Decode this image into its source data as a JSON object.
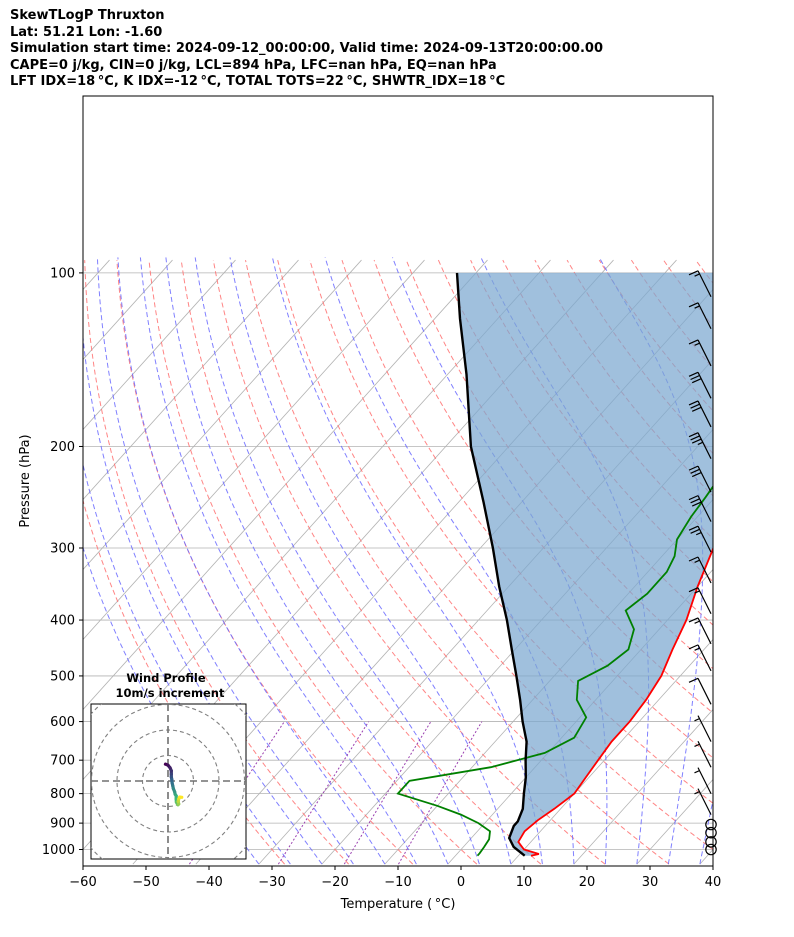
{
  "header": {
    "line1": "SkewTLogP Thruxton",
    "line2": "Lat: 51.21   Lon: -1.60",
    "line3": "Simulation start time: 2024-09-12_00:00:00, Valid time: 2024-09-13T20:00:00.00",
    "line4": "CAPE=0 j/kg, CIN=0 j/kg, LCL=894 hPa, LFC=nan hPa, EQ=nan hPa",
    "line5": "LFT IDX=18$^\\circ$C, K IDX=-12$^\\circ$C, TOTAL TOTS=22$^\\circ$C, SHWTR_IDX=18$^\\circ$C",
    "line5_display": "LFT IDX=18 °C, K IDX=-12 °C, TOTAL TOTS=22 °C, SHWTR_IDX=18 °C"
  },
  "chart_data": {
    "type": "skewt",
    "xlabel": "Temperature ($^\\circ$C)",
    "xlabel_display": "Temperature ( °C)",
    "ylabel": "Pressure (hPa)",
    "xlim": [
      -60,
      40
    ],
    "ylim": [
      1050,
      100
    ],
    "x_ticks": [
      -60,
      -50,
      -40,
      -30,
      -20,
      -10,
      0,
      10,
      20,
      30,
      40
    ],
    "y_ticks": [
      100,
      200,
      300,
      400,
      500,
      600,
      700,
      800,
      900,
      1000
    ],
    "y_scale": "log",
    "grid": true,
    "temperature": {
      "color": "#ff0000",
      "points": [
        [
          1025,
          12
        ],
        [
          1018,
          13
        ],
        [
          1000,
          10
        ],
        [
          970,
          8
        ],
        [
          930,
          7.5
        ],
        [
          890,
          8
        ],
        [
          850,
          9
        ],
        [
          800,
          10
        ],
        [
          750,
          9.5
        ],
        [
          700,
          9
        ],
        [
          650,
          8.5
        ],
        [
          600,
          8.5
        ],
        [
          550,
          8
        ],
        [
          500,
          7
        ],
        [
          450,
          5
        ],
        [
          400,
          3
        ],
        [
          350,
          0
        ],
        [
          300,
          -3
        ],
        [
          270,
          -5
        ],
        [
          245,
          -8
        ],
        [
          230,
          -10
        ],
        [
          215,
          -11.5
        ],
        [
          205,
          -11
        ],
        [
          190,
          -8.5
        ],
        [
          178,
          -7
        ],
        [
          168,
          -4
        ],
        [
          158,
          -1
        ],
        [
          148,
          1.5
        ],
        [
          140,
          3
        ],
        [
          132,
          5
        ],
        [
          124,
          6
        ],
        [
          115,
          6.5
        ],
        [
          108,
          8
        ],
        [
          100,
          10.5
        ]
      ]
    },
    "dewpoint": {
      "color": "#008000",
      "points": [
        [
          1025,
          3.5
        ],
        [
          1015,
          3.5
        ],
        [
          990,
          3.3
        ],
        [
          960,
          3
        ],
        [
          930,
          2
        ],
        [
          900,
          -1
        ],
        [
          870,
          -5
        ],
        [
          840,
          -10
        ],
        [
          800,
          -18
        ],
        [
          760,
          -18
        ],
        [
          720,
          -7
        ],
        [
          680,
          -0.5
        ],
        [
          640,
          2
        ],
        [
          590,
          1
        ],
        [
          550,
          -3
        ],
        [
          510,
          -5.5
        ],
        [
          480,
          -3
        ],
        [
          450,
          -2
        ],
        [
          415,
          -4
        ],
        [
          385,
          -8
        ],
        [
          360,
          -7
        ],
        [
          330,
          -7
        ],
        [
          310,
          -8
        ],
        [
          290,
          -10
        ],
        [
          265,
          -11
        ],
        [
          245,
          -11.5
        ],
        [
          230,
          -12
        ],
        [
          215,
          -14
        ],
        [
          205,
          -12.5
        ],
        [
          190,
          -11
        ],
        [
          175,
          -9.5
        ],
        [
          160,
          -11
        ],
        [
          148,
          -14
        ],
        [
          140,
          -19
        ],
        [
          128,
          -15
        ],
        [
          115,
          -11
        ],
        [
          100,
          -6
        ]
      ]
    },
    "parcel_profile": {
      "color": "#000000",
      "points": [
        [
          1025,
          11
        ],
        [
          990,
          8
        ],
        [
          955,
          6
        ],
        [
          910,
          5
        ],
        [
          894,
          5
        ],
        [
          850,
          4
        ],
        [
          800,
          2
        ],
        [
          750,
          0
        ],
        [
          700,
          -2.5
        ],
        [
          650,
          -5
        ],
        [
          600,
          -8.5
        ],
        [
          550,
          -12
        ],
        [
          500,
          -16
        ],
        [
          450,
          -20.5
        ],
        [
          400,
          -25.5
        ],
        [
          350,
          -31.5
        ],
        [
          300,
          -38
        ],
        [
          250,
          -46
        ],
        [
          200,
          -56
        ],
        [
          150,
          -67
        ],
        [
          120,
          -76
        ],
        [
          100,
          -83
        ]
      ]
    },
    "cape_shading": {
      "color": "#7ba8d0",
      "note": ""
    },
    "background_lines": {
      "isotherms_color": "#b3b3b3",
      "dry_adiabats_color": "#ff7070",
      "moist_adiabats_color": "#6a6aff",
      "mixing_ratio_color": "#9a40b0"
    },
    "wind_barbs": [
      {
        "p": 1000,
        "speed_kt": 0
      },
      {
        "p": 970,
        "speed_kt": 0
      },
      {
        "p": 935,
        "speed_kt": 0
      },
      {
        "p": 905,
        "speed_kt": 0
      },
      {
        "p": 870,
        "speed_kt": 5
      },
      {
        "p": 800,
        "speed_kt": 5
      },
      {
        "p": 720,
        "speed_kt": 5
      },
      {
        "p": 650,
        "speed_kt": 5
      },
      {
        "p": 560,
        "speed_kt": 10
      },
      {
        "p": 490,
        "speed_kt": 15
      },
      {
        "p": 440,
        "speed_kt": 15
      },
      {
        "p": 390,
        "speed_kt": 15
      },
      {
        "p": 345,
        "speed_kt": 15
      },
      {
        "p": 305,
        "speed_kt": 25
      },
      {
        "p": 270,
        "speed_kt": 30
      },
      {
        "p": 240,
        "speed_kt": 30
      },
      {
        "p": 210,
        "speed_kt": 35
      },
      {
        "p": 185,
        "speed_kt": 30
      },
      {
        "p": 165,
        "speed_kt": 30
      },
      {
        "p": 145,
        "speed_kt": 15
      },
      {
        "p": 125,
        "speed_kt": 15
      },
      {
        "p": 110,
        "speed_kt": 15
      }
    ],
    "hodograph": {
      "title": "Wind Profile",
      "subtitle": "10m/s increment",
      "rings": 3,
      "color_scale": [
        "#440154",
        "#31688e",
        "#35b779",
        "#fde725"
      ],
      "points_ms": [
        [
          -1,
          6.6
        ],
        [
          0,
          6.2
        ],
        [
          0.8,
          5.2
        ],
        [
          1.3,
          4.0
        ],
        [
          1.3,
          2.7
        ],
        [
          1.3,
          1.6
        ],
        [
          1.5,
          0.6
        ],
        [
          1.6,
          -0.7
        ],
        [
          1.9,
          -2.0
        ],
        [
          2.1,
          -3.0
        ],
        [
          2.6,
          -4.2
        ],
        [
          2.8,
          -5.2
        ],
        [
          3.2,
          -5.8
        ],
        [
          3.2,
          -7.0
        ],
        [
          3.3,
          -8.3
        ],
        [
          3.9,
          -9.3
        ],
        [
          4.2,
          -9.0
        ],
        [
          4.0,
          -8.0
        ],
        [
          4.2,
          -7.0
        ],
        [
          4.6,
          -6.3
        ],
        [
          5.4,
          -6.4
        ]
      ]
    }
  }
}
